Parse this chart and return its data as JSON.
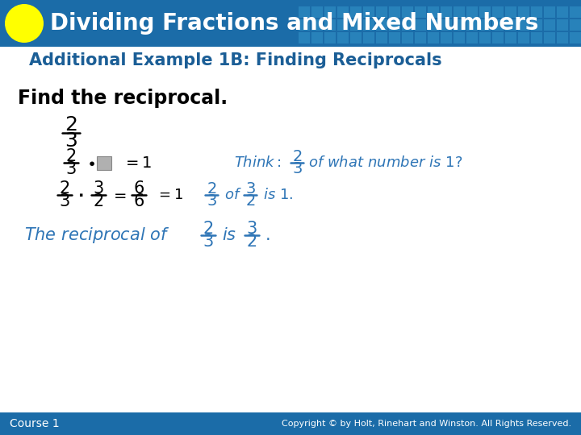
{
  "header_bg_color": "#1b6ca8",
  "header_text": "Dividing Fractions and Mixed Numbers",
  "header_text_color": "#ffffff",
  "header_font_size": 20,
  "circle_color": "#ffff00",
  "subheader_text": "Additional Example 1B: Finding Reciprocals",
  "subheader_color": "#1b5e96",
  "subheader_font_size": 15,
  "body_bg_color": "#ffffff",
  "find_text": "Find the reciprocal.",
  "find_color": "#000000",
  "find_font_size": 17,
  "blue_color": "#2e75b6",
  "footer_bg_color": "#1b6ca8",
  "footer_left": "Course 1",
  "footer_right": "Copyright © by Holt, Rinehart and Winston. All Rights Reserved.",
  "footer_text_color": "#ffffff",
  "footer_font_size": 10,
  "grid_color": "#3a8bbf"
}
